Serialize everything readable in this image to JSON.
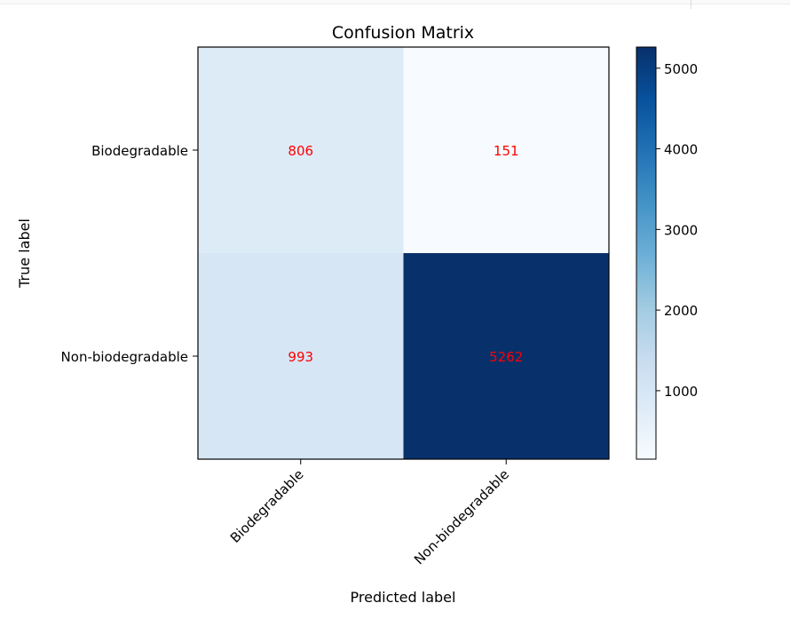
{
  "chart_data": {
    "type": "heatmap",
    "title": "Confusion Matrix",
    "xlabel": "Predicted label",
    "ylabel": "True label",
    "x_categories": [
      "Biodegradable",
      "Non-biodegradable"
    ],
    "y_categories": [
      "Biodegradable",
      "Non-biodegradable"
    ],
    "values": [
      [
        806,
        151
      ],
      [
        993,
        5262
      ]
    ],
    "colormap": "Blues",
    "cell_text_color": "#ff0000",
    "colorbar": {
      "min": 151,
      "max": 5262,
      "ticks": [
        1000,
        2000,
        3000,
        4000,
        5000
      ],
      "tick_labels": [
        "1000",
        "2000",
        "3000",
        "4000",
        "5000"
      ]
    }
  }
}
